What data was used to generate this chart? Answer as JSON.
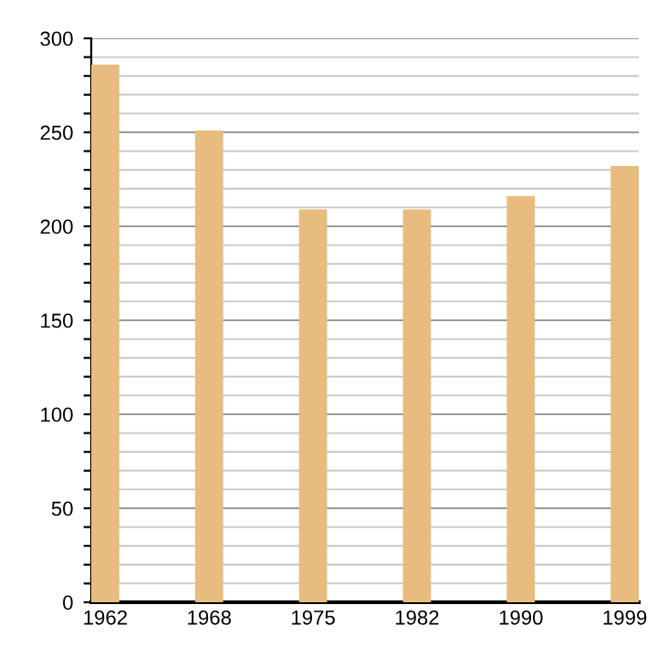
{
  "chart_data": {
    "type": "bar",
    "categories": [
      "1962",
      "1968",
      "1975",
      "1982",
      "1990",
      "1999"
    ],
    "values": [
      286,
      251,
      209,
      209,
      216,
      232
    ],
    "color": "#e8bb7e",
    "ylim": [
      0,
      300
    ],
    "yticks": [
      0,
      {
        "value": 10,
        "label": null
      },
      {
        "value": 20,
        "label": null
      },
      {
        "value": 30,
        "label": null
      },
      {
        "value": 40,
        "label": null
      },
      50,
      {
        "value": 60,
        "label": null
      },
      {
        "value": 70,
        "label": null
      },
      {
        "value": 80,
        "label": null
      },
      {
        "value": 90,
        "label": null
      },
      100,
      {
        "value": 110,
        "label": null
      },
      {
        "value": 120,
        "label": null
      },
      {
        "value": 130,
        "label": null
      },
      {
        "value": 140,
        "label": null
      },
      150,
      {
        "value": 160,
        "label": null
      },
      {
        "value": 170,
        "label": null
      },
      {
        "value": 180,
        "label": null
      },
      {
        "value": 190,
        "label": null
      },
      200,
      {
        "value": 210,
        "label": null
      },
      {
        "value": 220,
        "label": null
      },
      {
        "value": 230,
        "label": null
      },
      {
        "value": 240,
        "label": null
      },
      250,
      {
        "value": 260,
        "label": null
      },
      {
        "value": 270,
        "label": null
      },
      {
        "value": 280,
        "label": null
      },
      {
        "value": 290,
        "label": null
      },
      300
    ],
    "grid": "y"
  }
}
